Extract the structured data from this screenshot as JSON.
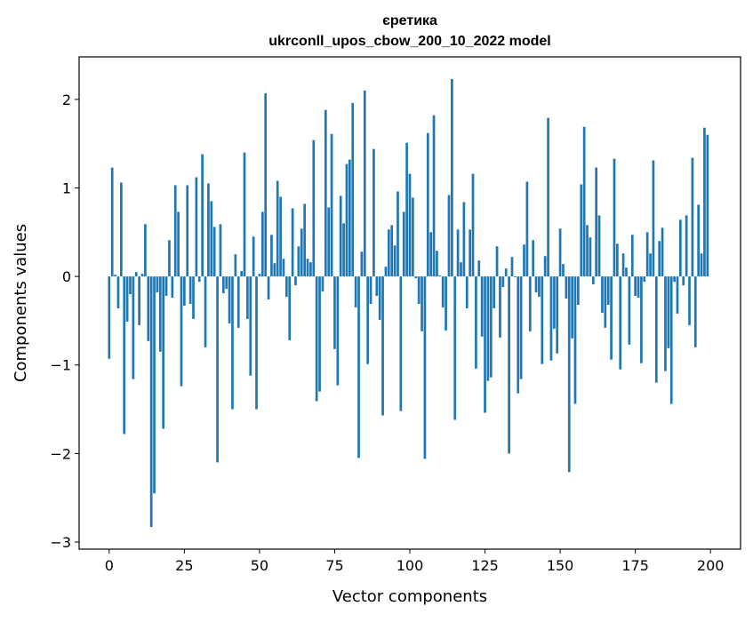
{
  "chart_data": {
    "type": "bar",
    "title": [
      "єретика",
      "ukrconll_upos_cbow_200_10_2022 model"
    ],
    "xlabel": "Vector components",
    "ylabel": "Components values",
    "xlim": [
      -10,
      210
    ],
    "ylim": [
      -3.08,
      2.48
    ],
    "xticks": [
      0,
      25,
      50,
      75,
      100,
      125,
      150,
      175,
      200
    ],
    "xtick_labels": [
      "0",
      "25",
      "50",
      "75",
      "100",
      "125",
      "150",
      "175",
      "200"
    ],
    "yticks": [
      -3,
      -2,
      -1,
      0,
      1,
      2
    ],
    "ytick_labels": [
      "−3",
      "−2",
      "−1",
      "0",
      "1",
      "2"
    ],
    "grid": false,
    "bar_color": "#1f77b4",
    "values": [
      -0.93,
      1.23,
      0.02,
      -0.36,
      1.06,
      -1.78,
      -0.51,
      -0.2,
      -1.16,
      0.05,
      -0.55,
      0.03,
      0.59,
      -0.73,
      -2.83,
      -2.45,
      -0.18,
      -0.85,
      -1.72,
      -0.22,
      0.41,
      -0.24,
      1.03,
      0.73,
      -1.24,
      -0.33,
      1.03,
      -0.31,
      -0.48,
      1.12,
      -0.06,
      1.38,
      -0.8,
      1.05,
      0.85,
      0.56,
      -2.1,
      0.59,
      -0.19,
      -0.14,
      -0.53,
      -1.5,
      0.25,
      -0.58,
      0.06,
      1.4,
      -0.48,
      -1.12,
      0.45,
      -1.5,
      0.03,
      0.73,
      2.07,
      -0.26,
      0.47,
      0.15,
      1.08,
      0.9,
      0.2,
      -0.23,
      -0.72,
      0.77,
      -0.1,
      0.34,
      0.54,
      0.82,
      0.2,
      0.16,
      1.54,
      -1.41,
      -1.3,
      -0.17,
      1.88,
      0.78,
      1.61,
      -0.82,
      -1.23,
      0.91,
      0.6,
      1.27,
      1.32,
      1.96,
      -0.35,
      -2.05,
      0.28,
      2.1,
      -0.99,
      -0.31,
      1.44,
      -0.22,
      -0.49,
      -1.57,
      0.11,
      0.53,
      0.58,
      0.35,
      0.96,
      -1.52,
      0.73,
      1.51,
      1.16,
      0.89,
      -0.02,
      -0.31,
      -0.62,
      -2.06,
      1.62,
      0.5,
      1.82,
      0.29,
      0.01,
      -0.35,
      -0.61,
      0.92,
      2.23,
      -1.62,
      0.53,
      0.16,
      0.84,
      -0.36,
      0.53,
      1.16,
      -1.04,
      0.18,
      -0.68,
      -1.54,
      -1.18,
      -1.14,
      -0.36,
      0.34,
      -0.69,
      -0.12,
      0.09,
      -2.0,
      0.22,
      -0.01,
      -1.32,
      -1.16,
      0.36,
      1.07,
      -0.62,
      0.41,
      -0.18,
      -0.23,
      -0.99,
      0.23,
      1.79,
      -0.95,
      -0.59,
      -0.87,
      0.54,
      0.14,
      -0.25,
      -2.21,
      -0.7,
      -1.44,
      -0.32,
      1.04,
      1.69,
      0.58,
      0.44,
      -0.09,
      1.23,
      0.69,
      -0.41,
      -0.58,
      -0.32,
      -0.94,
      1.33,
      0.37,
      -1.05,
      0.26,
      0.1,
      -0.77,
      0.47,
      -0.22,
      -0.24,
      -0.98,
      -0.06,
      0.5,
      0.26,
      1.31,
      -1.2,
      0.4,
      0.55,
      -1.07,
      -0.81,
      -1.44,
      -0.06,
      -0.42,
      0.64,
      -0.1,
      0.69,
      -0.55,
      1.34,
      -0.8,
      0.81,
      0.26,
      1.68,
      1.6
    ]
  }
}
